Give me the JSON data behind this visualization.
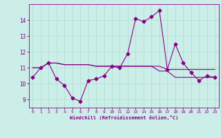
{
  "xlabel": "Windchill (Refroidissement éolien,°C)",
  "background_color": "#cceee8",
  "line_color": "#880088",
  "hours": [
    0,
    1,
    2,
    3,
    4,
    5,
    6,
    7,
    8,
    9,
    10,
    11,
    12,
    13,
    14,
    15,
    16,
    17,
    18,
    19,
    20,
    21,
    22,
    23
  ],
  "windchill": [
    10.4,
    11.0,
    11.3,
    10.3,
    9.9,
    9.1,
    8.9,
    10.2,
    10.3,
    10.5,
    11.1,
    11.0,
    11.9,
    14.1,
    13.9,
    14.2,
    14.6,
    10.9,
    12.5,
    11.3,
    10.7,
    10.2,
    10.5,
    10.4
  ],
  "temp_line1": [
    11.0,
    11.0,
    11.3,
    11.3,
    11.2,
    11.2,
    11.2,
    11.2,
    11.1,
    11.1,
    11.1,
    11.1,
    11.1,
    11.1,
    11.1,
    11.1,
    11.1,
    10.9,
    10.9,
    10.9,
    10.9,
    10.9,
    10.9,
    10.9
  ],
  "temp_line2": [
    11.0,
    11.0,
    11.3,
    11.3,
    11.2,
    11.2,
    11.2,
    11.2,
    11.1,
    11.1,
    11.1,
    11.1,
    11.1,
    11.1,
    11.1,
    11.1,
    10.8,
    10.8,
    10.4,
    10.4,
    10.4,
    10.4,
    10.4,
    10.4
  ],
  "ylim": [
    8.5,
    15.0
  ],
  "yticks": [
    9,
    10,
    11,
    12,
    13,
    14
  ],
  "xticks": [
    0,
    1,
    2,
    3,
    4,
    5,
    6,
    7,
    8,
    9,
    10,
    11,
    12,
    13,
    14,
    15,
    16,
    17,
    18,
    19,
    20,
    21,
    22,
    23
  ],
  "grid_color": "#aaddcc",
  "markersize": 2.5,
  "linewidth": 0.8
}
